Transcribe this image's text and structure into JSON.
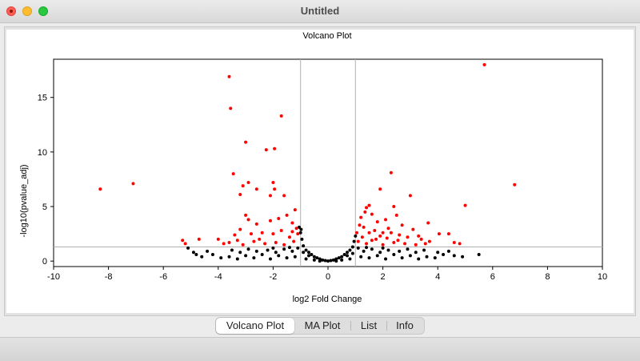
{
  "window": {
    "title": "Untitled"
  },
  "tabs": [
    {
      "label": "Volcano Plot",
      "active": true
    },
    {
      "label": "MA Plot",
      "active": false
    },
    {
      "label": "List",
      "active": false
    },
    {
      "label": "Info",
      "active": false
    }
  ],
  "colors": {
    "significant": "#ff0000",
    "not_significant": "#000000",
    "threshold_line": "#b0b0b0"
  },
  "chart_data": {
    "type": "scatter",
    "title": "Volcano Plot",
    "xlabel": "log2 Fold Change",
    "ylabel": "-log10(pvalue_adj)",
    "xlim": [
      -10,
      10
    ],
    "ylim": [
      -0.5,
      18.5
    ],
    "xticks": [
      -10,
      -8,
      -6,
      -4,
      -2,
      0,
      2,
      4,
      6,
      8,
      10
    ],
    "yticks": [
      0,
      5,
      10,
      15
    ],
    "grid": false,
    "legend": "none",
    "thresholds": {
      "fold_change": [
        -1,
        1
      ],
      "pvalue_adj": 1.3
    },
    "series": [
      {
        "color": "#ff0000",
        "points": [
          [
            5.7,
            18.0
          ],
          [
            -3.6,
            16.9
          ],
          [
            -3.55,
            14.0
          ],
          [
            -1.7,
            13.3
          ],
          [
            -3.0,
            10.9
          ],
          [
            -2.25,
            10.2
          ],
          [
            -1.95,
            10.3
          ],
          [
            2.3,
            8.1
          ],
          [
            -3.45,
            8.0
          ],
          [
            -2.9,
            7.2
          ],
          [
            -2.0,
            7.2
          ],
          [
            6.8,
            7.0
          ],
          [
            -7.1,
            7.1
          ],
          [
            -8.3,
            6.6
          ],
          [
            -3.1,
            6.9
          ],
          [
            -2.6,
            6.6
          ],
          [
            -1.95,
            6.6
          ],
          [
            1.9,
            6.6
          ],
          [
            3.0,
            6.0
          ],
          [
            -3.2,
            6.1
          ],
          [
            -2.1,
            6.0
          ],
          [
            -1.6,
            6.0
          ],
          [
            5.0,
            5.1
          ],
          [
            -1.2,
            4.7
          ],
          [
            1.35,
            4.5
          ],
          [
            1.5,
            5.1
          ],
          [
            1.4,
            4.9
          ],
          [
            2.4,
            5.0
          ],
          [
            3.65,
            3.5
          ],
          [
            -5.3,
            1.9
          ],
          [
            -5.2,
            1.6
          ],
          [
            -4.7,
            2.0
          ],
          [
            4.05,
            2.5
          ],
          [
            4.4,
            2.5
          ],
          [
            4.6,
            1.7
          ],
          [
            4.8,
            1.6
          ],
          [
            3.55,
            1.6
          ],
          [
            -3.0,
            4.2
          ],
          [
            -2.9,
            3.8
          ],
          [
            -2.6,
            3.4
          ],
          [
            -2.1,
            3.7
          ],
          [
            -1.8,
            3.9
          ],
          [
            -1.5,
            4.2
          ],
          [
            -1.3,
            3.5
          ],
          [
            -3.4,
            2.4
          ],
          [
            -3.2,
            2.9
          ],
          [
            -2.8,
            2.5
          ],
          [
            -2.4,
            2.6
          ],
          [
            -2.0,
            2.5
          ],
          [
            -1.7,
            2.8
          ],
          [
            -1.4,
            2.2
          ],
          [
            -3.6,
            1.7
          ],
          [
            -3.1,
            1.5
          ],
          [
            -2.7,
            1.8
          ],
          [
            -2.3,
            1.6
          ],
          [
            -1.9,
            1.7
          ],
          [
            -1.6,
            1.5
          ],
          [
            -1.25,
            1.8
          ],
          [
            -1.1,
            2.5
          ],
          [
            -1.15,
            3.0
          ],
          [
            -1.3,
            2.7
          ],
          [
            -4.0,
            2.0
          ],
          [
            -3.8,
            1.6
          ],
          [
            -3.3,
            1.9
          ],
          [
            -2.5,
            2.0
          ],
          [
            1.2,
            4.0
          ],
          [
            1.6,
            4.3
          ],
          [
            1.8,
            3.6
          ],
          [
            2.1,
            3.8
          ],
          [
            2.5,
            4.2
          ],
          [
            2.7,
            3.3
          ],
          [
            3.1,
            2.9
          ],
          [
            2.2,
            3.0
          ],
          [
            1.3,
            3.1
          ],
          [
            1.5,
            2.6
          ],
          [
            1.7,
            2.8
          ],
          [
            1.9,
            2.3
          ],
          [
            2.3,
            2.6
          ],
          [
            2.6,
            2.4
          ],
          [
            2.9,
            2.2
          ],
          [
            3.3,
            2.3
          ],
          [
            1.1,
            1.8
          ],
          [
            1.4,
            1.6
          ],
          [
            1.6,
            1.9
          ],
          [
            2.0,
            1.5
          ],
          [
            2.4,
            1.7
          ],
          [
            2.8,
            1.6
          ],
          [
            3.2,
            1.5
          ],
          [
            3.7,
            1.8
          ],
          [
            1.25,
            2.2
          ],
          [
            1.75,
            2.0
          ],
          [
            2.15,
            2.1
          ],
          [
            2.55,
            1.9
          ],
          [
            1.05,
            2.6
          ],
          [
            1.15,
            3.3
          ],
          [
            3.4,
            2.0
          ],
          [
            2.0,
            2.6
          ]
        ]
      },
      {
        "color": "#000000",
        "points": [
          [
            0,
            0.0
          ],
          [
            0.1,
            0.05
          ],
          [
            -0.1,
            0.05
          ],
          [
            0.2,
            0.1
          ],
          [
            -0.2,
            0.1
          ],
          [
            0.3,
            0.2
          ],
          [
            -0.3,
            0.2
          ],
          [
            0.4,
            0.3
          ],
          [
            -0.4,
            0.3
          ],
          [
            0.5,
            0.4
          ],
          [
            -0.5,
            0.4
          ],
          [
            0.6,
            0.6
          ],
          [
            -0.6,
            0.6
          ],
          [
            0.7,
            0.8
          ],
          [
            -0.7,
            0.8
          ],
          [
            0.8,
            1.0
          ],
          [
            -0.8,
            1.0
          ],
          [
            0.9,
            1.3
          ],
          [
            -0.9,
            1.4
          ],
          [
            0.95,
            1.8
          ],
          [
            -0.95,
            2.0
          ],
          [
            1.0,
            2.3
          ],
          [
            -1.0,
            2.6
          ],
          [
            -1.05,
            3.1
          ],
          [
            -0.98,
            2.9
          ],
          [
            0.5,
            0.1
          ],
          [
            -0.5,
            0.1
          ],
          [
            0.8,
            0.2
          ],
          [
            -0.8,
            0.2
          ],
          [
            0.7,
            0.5
          ],
          [
            -0.7,
            0.5
          ],
          [
            0.9,
            0.7
          ],
          [
            -0.9,
            0.8
          ],
          [
            -1.2,
            0.4
          ],
          [
            -1.5,
            0.3
          ],
          [
            -1.8,
            0.5
          ],
          [
            -2.1,
            0.2
          ],
          [
            -2.4,
            0.6
          ],
          [
            -2.7,
            0.3
          ],
          [
            -3.0,
            0.5
          ],
          [
            -3.3,
            0.2
          ],
          [
            -3.6,
            0.4
          ],
          [
            -3.9,
            0.3
          ],
          [
            -4.2,
            0.6
          ],
          [
            -4.6,
            0.4
          ],
          [
            -4.9,
            0.8
          ],
          [
            -5.1,
            1.2
          ],
          [
            -4.8,
            0.6
          ],
          [
            -4.4,
            0.9
          ],
          [
            -1.3,
            0.9
          ],
          [
            -1.6,
            1.1
          ],
          [
            -1.9,
            0.8
          ],
          [
            -2.2,
            1.0
          ],
          [
            -2.6,
            0.9
          ],
          [
            -2.9,
            1.1
          ],
          [
            -3.2,
            0.8
          ],
          [
            -3.5,
            1.0
          ],
          [
            1.2,
            0.4
          ],
          [
            1.5,
            0.3
          ],
          [
            1.8,
            0.5
          ],
          [
            2.1,
            0.2
          ],
          [
            2.4,
            0.6
          ],
          [
            2.7,
            0.3
          ],
          [
            3.0,
            0.5
          ],
          [
            3.3,
            0.2
          ],
          [
            3.6,
            0.4
          ],
          [
            3.9,
            0.3
          ],
          [
            4.2,
            0.6
          ],
          [
            4.6,
            0.5
          ],
          [
            4.9,
            0.4
          ],
          [
            5.5,
            0.6
          ],
          [
            4.0,
            0.8
          ],
          [
            4.4,
            0.9
          ],
          [
            1.3,
            0.9
          ],
          [
            1.6,
            1.1
          ],
          [
            1.9,
            0.8
          ],
          [
            2.2,
            1.0
          ],
          [
            2.6,
            0.9
          ],
          [
            2.9,
            1.1
          ],
          [
            3.2,
            0.8
          ],
          [
            3.5,
            1.0
          ],
          [
            -1.1,
            1.2
          ],
          [
            -1.4,
            1.25
          ],
          [
            1.1,
            1.2
          ],
          [
            1.4,
            1.25
          ],
          [
            2.0,
            1.2
          ],
          [
            -2.0,
            1.2
          ],
          [
            0.3,
            0.0
          ],
          [
            -0.3,
            0.0
          ]
        ]
      }
    ]
  }
}
